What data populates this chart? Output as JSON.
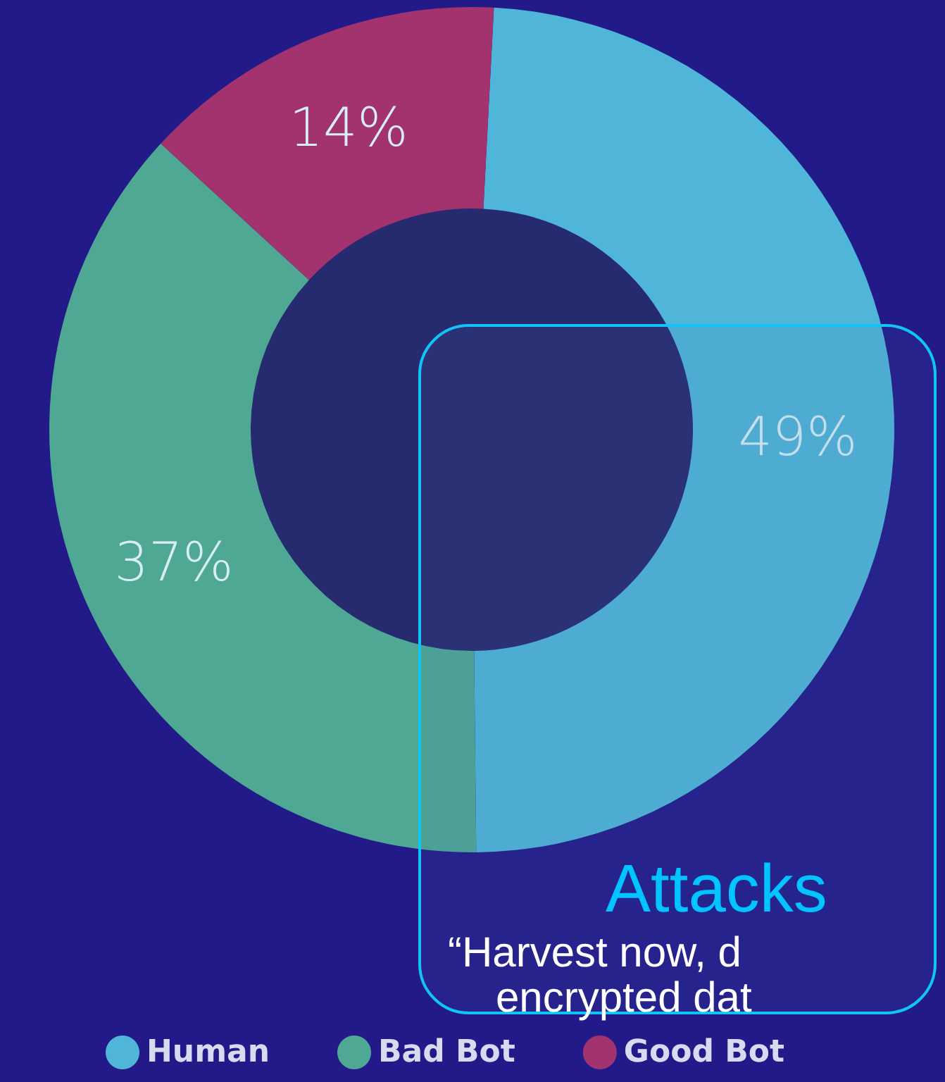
{
  "chart_data": {
    "type": "donut",
    "categories": [
      "Human",
      "Bad Bot",
      "Good Bot"
    ],
    "values": [
      49,
      37,
      14
    ],
    "colors": [
      "#4fb6d9",
      "#4ea893",
      "#a2336f"
    ],
    "value_labels": [
      "49%",
      "37%",
      "14%"
    ],
    "legend": "bottom left",
    "annotations": [
      "Attacks",
      "“Harvest now, d",
      "encrypted dat"
    ]
  }
}
